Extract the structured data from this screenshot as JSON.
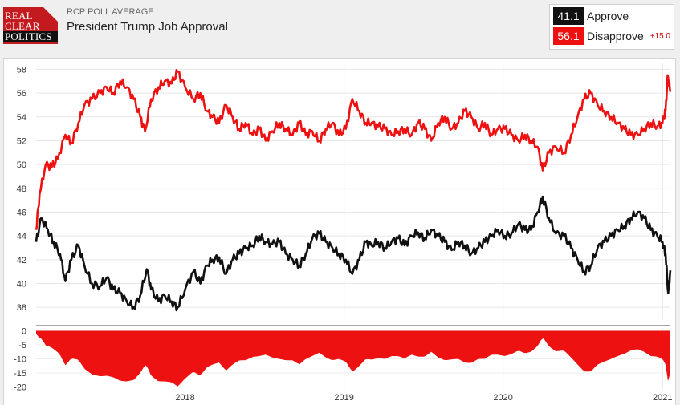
{
  "header": {
    "logo": {
      "line1": "REAL",
      "line2": "CLEAR",
      "line3": "POLITICS"
    },
    "source_label": "RCP POLL AVERAGE",
    "title": "President Trump Job Approval"
  },
  "legend": {
    "approve": {
      "value": "41.1",
      "label": "Approve",
      "color": "#111111"
    },
    "disapprove": {
      "value": "56.1",
      "label": "Disapprove",
      "color": "#ee1111"
    },
    "spread": "+15.0"
  },
  "chart_data": {
    "type": "line",
    "title": "President Trump Job Approval",
    "xlabel": "",
    "ylabel": "",
    "ylim": [
      37,
      58.5
    ],
    "yticks": [
      38,
      40,
      42,
      44,
      46,
      48,
      50,
      52,
      54,
      56,
      58
    ],
    "xticks": [
      {
        "label": "2018",
        "date": "2018-01-01"
      },
      {
        "label": "2019",
        "date": "2019-01-01"
      },
      {
        "label": "2020",
        "date": "2020-01-01"
      },
      {
        "label": "2021",
        "date": "2021-01-01"
      }
    ],
    "grid": true,
    "series": [
      {
        "name": "Approve",
        "color": "#111111",
        "points": [
          [
            "2017-01-24",
            43.5
          ],
          [
            "2017-02-05",
            45.5
          ],
          [
            "2017-02-20",
            44.5
          ],
          [
            "2017-03-05",
            43.5
          ],
          [
            "2017-03-20",
            42.5
          ],
          [
            "2017-04-01",
            40.2
          ],
          [
            "2017-04-15",
            42.0
          ],
          [
            "2017-05-01",
            43.2
          ],
          [
            "2017-05-15",
            41.5
          ],
          [
            "2017-06-01",
            40.0
          ],
          [
            "2017-06-20",
            39.8
          ],
          [
            "2017-07-05",
            40.5
          ],
          [
            "2017-07-20",
            39.5
          ],
          [
            "2017-08-05",
            39.2
          ],
          [
            "2017-08-20",
            38.5
          ],
          [
            "2017-09-05",
            38.0
          ],
          [
            "2017-09-20",
            39.0
          ],
          [
            "2017-10-05",
            41.2
          ],
          [
            "2017-10-15",
            39.5
          ],
          [
            "2017-11-01",
            38.5
          ],
          [
            "2017-11-15",
            39.0
          ],
          [
            "2017-12-01",
            38.5
          ],
          [
            "2017-12-15",
            38.0
          ],
          [
            "2018-01-01",
            39.5
          ],
          [
            "2018-01-20",
            41.0
          ],
          [
            "2018-02-05",
            40.0
          ],
          [
            "2018-02-20",
            41.5
          ],
          [
            "2018-03-05",
            42.0
          ],
          [
            "2018-03-20",
            42.2
          ],
          [
            "2018-04-05",
            40.8
          ],
          [
            "2018-04-20",
            42.0
          ],
          [
            "2018-05-05",
            42.5
          ],
          [
            "2018-05-20",
            43.0
          ],
          [
            "2018-06-05",
            43.2
          ],
          [
            "2018-06-20",
            44.0
          ],
          [
            "2018-07-05",
            43.5
          ],
          [
            "2018-07-20",
            43.3
          ],
          [
            "2018-08-05",
            43.5
          ],
          [
            "2018-08-20",
            42.5
          ],
          [
            "2018-09-05",
            42.0
          ],
          [
            "2018-09-20",
            41.5
          ],
          [
            "2018-10-05",
            42.5
          ],
          [
            "2018-10-20",
            43.8
          ],
          [
            "2018-11-05",
            44.2
          ],
          [
            "2018-11-20",
            43.5
          ],
          [
            "2018-12-05",
            43.0
          ],
          [
            "2018-12-20",
            42.5
          ],
          [
            "2019-01-05",
            42.0
          ],
          [
            "2019-01-20",
            40.8
          ],
          [
            "2019-02-05",
            42.0
          ],
          [
            "2019-02-20",
            43.5
          ],
          [
            "2019-03-05",
            43.2
          ],
          [
            "2019-03-20",
            43.5
          ],
          [
            "2019-04-05",
            43.0
          ],
          [
            "2019-04-20",
            43.5
          ],
          [
            "2019-05-05",
            43.8
          ],
          [
            "2019-05-20",
            43.2
          ],
          [
            "2019-06-05",
            44.0
          ],
          [
            "2019-06-20",
            44.3
          ],
          [
            "2019-07-05",
            43.8
          ],
          [
            "2019-07-20",
            44.5
          ],
          [
            "2019-08-05",
            44.0
          ],
          [
            "2019-08-20",
            43.5
          ],
          [
            "2019-09-05",
            42.8
          ],
          [
            "2019-09-20",
            43.5
          ],
          [
            "2019-10-05",
            43.2
          ],
          [
            "2019-10-20",
            42.5
          ],
          [
            "2019-11-05",
            43.0
          ],
          [
            "2019-11-20",
            43.5
          ],
          [
            "2019-12-05",
            44.0
          ],
          [
            "2019-12-20",
            44.5
          ],
          [
            "2020-01-05",
            44.0
          ],
          [
            "2020-01-20",
            44.2
          ],
          [
            "2020-02-05",
            45.0
          ],
          [
            "2020-02-20",
            44.5
          ],
          [
            "2020-03-05",
            44.5
          ],
          [
            "2020-03-20",
            46.0
          ],
          [
            "2020-04-01",
            47.3
          ],
          [
            "2020-04-15",
            45.5
          ],
          [
            "2020-05-01",
            44.2
          ],
          [
            "2020-05-20",
            44.0
          ],
          [
            "2020-06-05",
            43.0
          ],
          [
            "2020-06-20",
            42.0
          ],
          [
            "2020-07-05",
            41.0
          ],
          [
            "2020-07-20",
            41.5
          ],
          [
            "2020-08-05",
            43.0
          ],
          [
            "2020-08-20",
            43.5
          ],
          [
            "2020-09-05",
            44.0
          ],
          [
            "2020-09-20",
            44.5
          ],
          [
            "2020-10-05",
            44.8
          ],
          [
            "2020-10-20",
            45.5
          ],
          [
            "2020-11-05",
            46.0
          ],
          [
            "2020-11-20",
            45.5
          ],
          [
            "2020-12-05",
            44.5
          ],
          [
            "2020-12-20",
            44.0
          ],
          [
            "2021-01-01",
            43.5
          ],
          [
            "2021-01-08",
            42.5
          ],
          [
            "2021-01-14",
            39.2
          ],
          [
            "2021-01-19",
            41.1
          ]
        ]
      },
      {
        "name": "Disapprove",
        "color": "#ee1111",
        "points": [
          [
            "2017-01-24",
            44.5
          ],
          [
            "2017-02-01",
            47.5
          ],
          [
            "2017-02-15",
            50.0
          ],
          [
            "2017-03-01",
            49.8
          ],
          [
            "2017-03-15",
            50.5
          ],
          [
            "2017-04-01",
            52.5
          ],
          [
            "2017-04-15",
            51.8
          ],
          [
            "2017-05-01",
            53.5
          ],
          [
            "2017-05-15",
            55.0
          ],
          [
            "2017-06-01",
            55.5
          ],
          [
            "2017-06-20",
            56.0
          ],
          [
            "2017-07-05",
            56.5
          ],
          [
            "2017-07-20",
            56.0
          ],
          [
            "2017-08-05",
            57.0
          ],
          [
            "2017-08-20",
            56.5
          ],
          [
            "2017-09-05",
            55.5
          ],
          [
            "2017-09-20",
            54.0
          ],
          [
            "2017-10-01",
            52.8
          ],
          [
            "2017-10-15",
            55.5
          ],
          [
            "2017-11-01",
            56.5
          ],
          [
            "2017-11-15",
            57.0
          ],
          [
            "2017-12-01",
            56.8
          ],
          [
            "2017-12-15",
            57.8
          ],
          [
            "2018-01-01",
            56.5
          ],
          [
            "2018-01-20",
            55.5
          ],
          [
            "2018-02-05",
            56.0
          ],
          [
            "2018-02-20",
            54.5
          ],
          [
            "2018-03-05",
            54.0
          ],
          [
            "2018-03-20",
            53.5
          ],
          [
            "2018-04-05",
            55.0
          ],
          [
            "2018-04-20",
            54.0
          ],
          [
            "2018-05-05",
            53.0
          ],
          [
            "2018-05-20",
            53.5
          ],
          [
            "2018-06-05",
            52.5
          ],
          [
            "2018-06-20",
            53.0
          ],
          [
            "2018-07-05",
            52.0
          ],
          [
            "2018-07-20",
            52.8
          ],
          [
            "2018-08-05",
            53.5
          ],
          [
            "2018-08-20",
            53.0
          ],
          [
            "2018-09-05",
            52.5
          ],
          [
            "2018-09-20",
            53.5
          ],
          [
            "2018-10-05",
            52.5
          ],
          [
            "2018-10-20",
            52.8
          ],
          [
            "2018-11-05",
            52.0
          ],
          [
            "2018-11-20",
            53.0
          ],
          [
            "2018-12-05",
            53.5
          ],
          [
            "2018-12-20",
            52.5
          ],
          [
            "2019-01-05",
            53.0
          ],
          [
            "2019-01-20",
            55.5
          ],
          [
            "2019-02-05",
            54.5
          ],
          [
            "2019-02-20",
            53.5
          ],
          [
            "2019-03-05",
            53.5
          ],
          [
            "2019-03-20",
            53.2
          ],
          [
            "2019-04-05",
            53.0
          ],
          [
            "2019-04-20",
            52.5
          ],
          [
            "2019-05-05",
            52.8
          ],
          [
            "2019-05-20",
            53.0
          ],
          [
            "2019-06-05",
            52.5
          ],
          [
            "2019-06-20",
            53.5
          ],
          [
            "2019-07-05",
            53.0
          ],
          [
            "2019-07-20",
            52.0
          ],
          [
            "2019-08-05",
            53.5
          ],
          [
            "2019-08-20",
            54.0
          ],
          [
            "2019-09-05",
            53.0
          ],
          [
            "2019-09-20",
            53.5
          ],
          [
            "2019-10-05",
            54.5
          ],
          [
            "2019-10-20",
            54.0
          ],
          [
            "2019-11-05",
            53.0
          ],
          [
            "2019-11-20",
            53.5
          ],
          [
            "2019-12-05",
            52.5
          ],
          [
            "2019-12-20",
            53.0
          ],
          [
            "2020-01-05",
            53.0
          ],
          [
            "2020-01-20",
            52.5
          ],
          [
            "2020-02-05",
            52.0
          ],
          [
            "2020-02-20",
            52.5
          ],
          [
            "2020-03-05",
            52.0
          ],
          [
            "2020-03-20",
            51.5
          ],
          [
            "2020-04-01",
            49.5
          ],
          [
            "2020-04-15",
            51.0
          ],
          [
            "2020-05-01",
            51.5
          ],
          [
            "2020-05-20",
            51.0
          ],
          [
            "2020-06-05",
            52.5
          ],
          [
            "2020-06-20",
            54.0
          ],
          [
            "2020-07-05",
            55.5
          ],
          [
            "2020-07-20",
            56.0
          ],
          [
            "2020-08-05",
            55.0
          ],
          [
            "2020-08-20",
            54.5
          ],
          [
            "2020-09-05",
            54.0
          ],
          [
            "2020-09-20",
            53.5
          ],
          [
            "2020-10-05",
            53.0
          ],
          [
            "2020-10-20",
            52.5
          ],
          [
            "2020-11-05",
            52.5
          ],
          [
            "2020-11-20",
            53.0
          ],
          [
            "2020-12-05",
            53.5
          ],
          [
            "2020-12-20",
            53.2
          ],
          [
            "2021-01-01",
            53.5
          ],
          [
            "2021-01-08",
            54.5
          ],
          [
            "2021-01-13",
            57.5
          ],
          [
            "2021-01-19",
            56.1
          ]
        ]
      }
    ],
    "spread_panel": {
      "type": "area",
      "name": "Spread",
      "color": "#ee1111",
      "ylim": [
        -21,
        1
      ],
      "yticks": [
        0,
        -5,
        -10,
        -15,
        -20
      ]
    }
  }
}
